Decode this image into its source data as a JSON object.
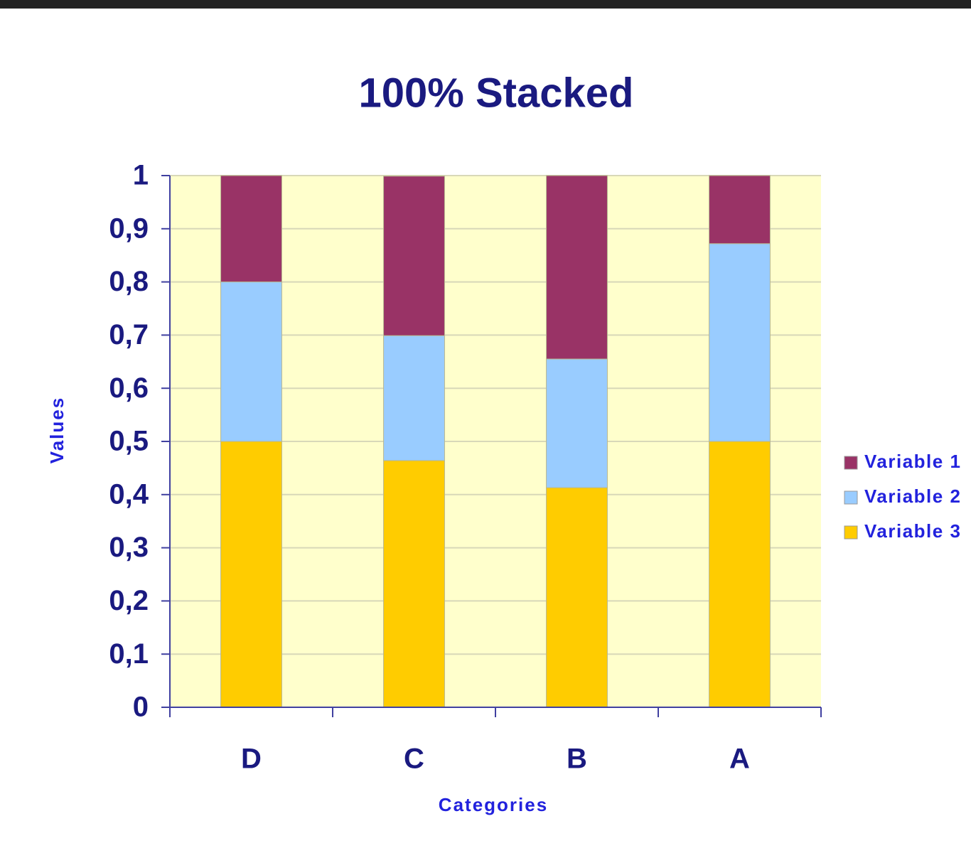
{
  "chart_data": {
    "type": "bar",
    "stacked": "percent",
    "title": "100% Stacked",
    "x_label": "Categories",
    "y_label": "Values",
    "categories": [
      "D",
      "C",
      "B",
      "A"
    ],
    "series": [
      {
        "name": "Variable 1",
        "color": "#993366",
        "values": [
          0.2,
          0.3,
          0.345,
          0.128
        ]
      },
      {
        "name": "Variable 2",
        "color": "#99ccff",
        "values": [
          0.3,
          0.235,
          0.242,
          0.372
        ]
      },
      {
        "name": "Variable 3",
        "color": "#ffcc00",
        "values": [
          0.5,
          0.464,
          0.413,
          0.5
        ]
      }
    ],
    "ylim": [
      0,
      1
    ],
    "yticks": [
      0,
      {
        "value": 0.1,
        "label": "0,1"
      },
      {
        "value": 0.2,
        "label": "0,2"
      },
      {
        "value": 0.3,
        "label": "0,3"
      },
      {
        "value": 0.4,
        "label": "0,4"
      },
      {
        "value": 0.5,
        "label": "0,5"
      },
      {
        "value": 0.6,
        "label": "0,6"
      },
      {
        "value": 0.7,
        "label": "0,7"
      },
      {
        "value": 0.8,
        "label": "0,8"
      },
      {
        "value": 0.9,
        "label": "0,9"
      },
      1
    ],
    "grid": true,
    "legend": "right",
    "plot_background": "#ffffcc"
  }
}
